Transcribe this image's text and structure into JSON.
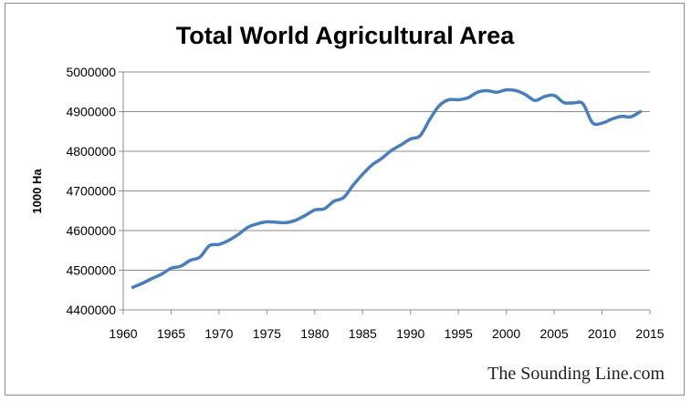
{
  "chart_data": {
    "type": "line",
    "title": "Total World Agricultural Area",
    "xlabel": "",
    "ylabel": "1000 Ha",
    "xlim": [
      1960,
      2015
    ],
    "ylim": [
      4400000,
      5000000
    ],
    "x_ticks": [
      1960,
      1965,
      1970,
      1975,
      1980,
      1985,
      1990,
      1995,
      2000,
      2005,
      2010,
      2015
    ],
    "y_ticks": [
      4400000,
      4500000,
      4600000,
      4700000,
      4800000,
      4900000,
      5000000
    ],
    "grid": true,
    "legend": "none",
    "series": [
      {
        "color": "#4a7ebb",
        "x": [
          1961,
          1962,
          1963,
          1964,
          1965,
          1966,
          1967,
          1968,
          1969,
          1970,
          1971,
          1972,
          1973,
          1974,
          1975,
          1976,
          1977,
          1978,
          1979,
          1980,
          1981,
          1982,
          1983,
          1984,
          1985,
          1986,
          1987,
          1988,
          1989,
          1990,
          1991,
          1992,
          1993,
          1994,
          1995,
          1996,
          1997,
          1998,
          1999,
          2000,
          2001,
          2002,
          2003,
          2004,
          2005,
          2006,
          2007,
          2008,
          2009,
          2010,
          2011,
          2012,
          2013,
          2014
        ],
        "y": [
          4457000,
          4467000,
          4479000,
          4490000,
          4505000,
          4510000,
          4525000,
          4533000,
          4562000,
          4565000,
          4575000,
          4590000,
          4608000,
          4617000,
          4622000,
          4621000,
          4620000,
          4626000,
          4638000,
          4652000,
          4655000,
          4674000,
          4683000,
          4714000,
          4742000,
          4766000,
          4782000,
          4802000,
          4816000,
          4831000,
          4839000,
          4880000,
          4915000,
          4930000,
          4930000,
          4935000,
          4949000,
          4953000,
          4949000,
          4955000,
          4953000,
          4943000,
          4928000,
          4938000,
          4941000,
          4923000,
          4922000,
          4920000,
          4872000,
          4871000,
          4881000,
          4888000,
          4887000,
          4900000
        ]
      }
    ]
  },
  "watermark": "The Sounding Line.com"
}
